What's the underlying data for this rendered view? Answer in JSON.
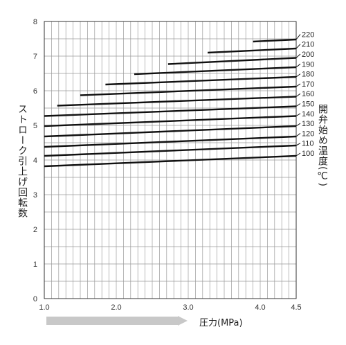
{
  "chart_data": {
    "type": "line",
    "xlabel": "圧力(MPa)",
    "ylabel": "ストローク引上げ回転数",
    "right_label": "開弁始め温度(℃)",
    "xlim": [
      1.0,
      4.5
    ],
    "ylim": [
      0,
      8
    ],
    "x_ticks": [
      "1.0",
      "2.0",
      "3.0",
      "4.0",
      "4.5"
    ],
    "x_tick_values": [
      1.0,
      2.0,
      3.0,
      4.0,
      4.5
    ],
    "y_ticks": [
      "0",
      "1",
      "2",
      "3",
      "4",
      "5",
      "6",
      "7",
      "8"
    ],
    "grid": true,
    "series": [
      {
        "name": "100",
        "x": [
          1.0,
          4.5
        ],
        "y": [
          3.82,
          4.12
        ]
      },
      {
        "name": "110",
        "x": [
          1.0,
          4.5
        ],
        "y": [
          4.12,
          4.42
        ]
      },
      {
        "name": "120",
        "x": [
          1.0,
          4.5
        ],
        "y": [
          4.38,
          4.68
        ]
      },
      {
        "name": "130",
        "x": [
          1.0,
          4.5
        ],
        "y": [
          4.68,
          4.98
        ]
      },
      {
        "name": "140",
        "x": [
          1.0,
          4.5
        ],
        "y": [
          4.98,
          5.27
        ]
      },
      {
        "name": "150",
        "x": [
          1.0,
          4.5
        ],
        "y": [
          5.27,
          5.55
        ]
      },
      {
        "name": "160",
        "x": [
          1.18,
          4.5
        ],
        "y": [
          5.57,
          5.83
        ]
      },
      {
        "name": "170",
        "x": [
          1.5,
          4.5
        ],
        "y": [
          5.87,
          6.12
        ]
      },
      {
        "name": "180",
        "x": [
          1.85,
          4.5
        ],
        "y": [
          6.18,
          6.4
        ]
      },
      {
        "name": "190",
        "x": [
          2.25,
          4.5
        ],
        "y": [
          6.48,
          6.68
        ]
      },
      {
        "name": "200",
        "x": [
          2.72,
          4.5
        ],
        "y": [
          6.77,
          6.95
        ]
      },
      {
        "name": "210",
        "x": [
          3.27,
          4.5
        ],
        "y": [
          7.1,
          7.22
        ]
      },
      {
        "name": "220",
        "x": [
          3.9,
          4.5
        ],
        "y": [
          7.42,
          7.48
        ]
      }
    ]
  }
}
